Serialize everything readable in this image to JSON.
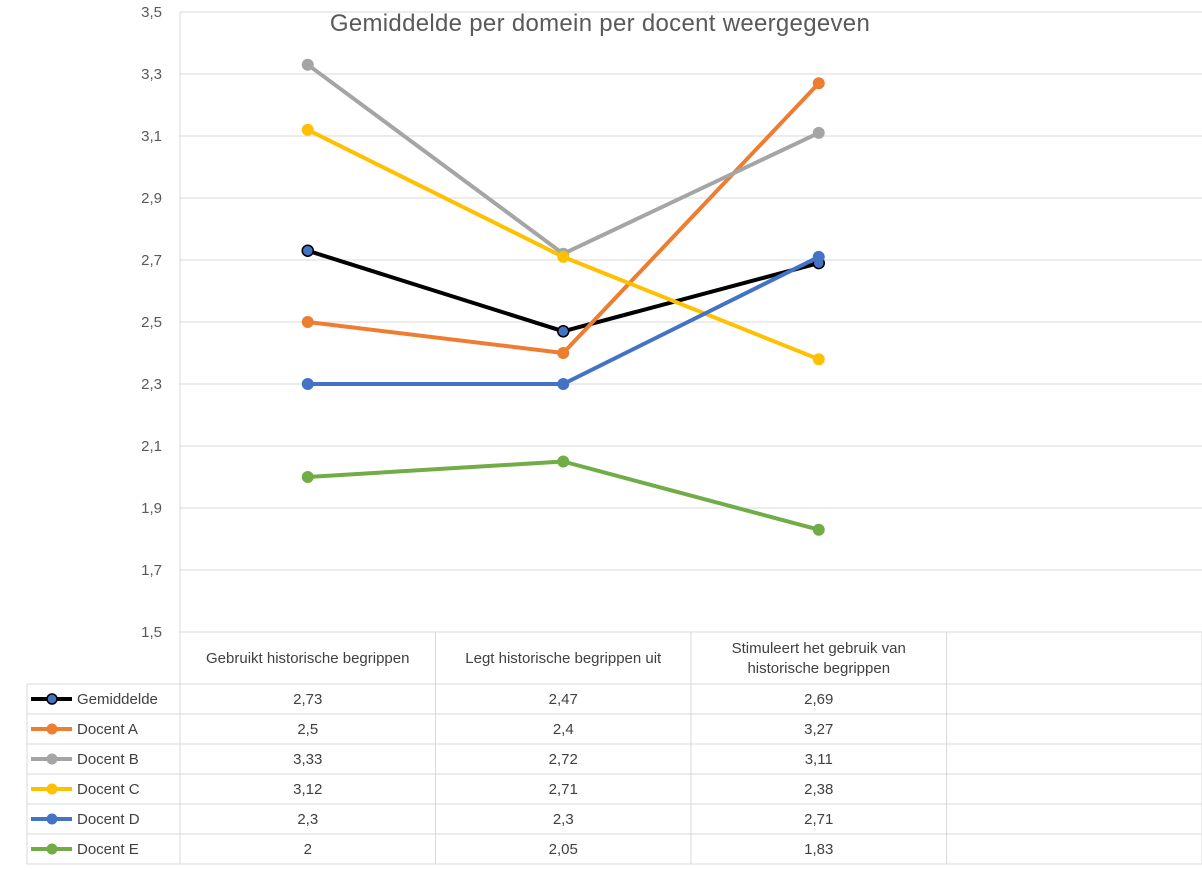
{
  "chart_data": {
    "type": "line",
    "title": "Gemiddelde per domein per docent weergegeven",
    "categories": [
      "Gebruikt historische begrippen",
      "Legt historische begrippen uit",
      "Stimuleert het gebruik van historische begrippen"
    ],
    "category_lines": [
      [
        "Gebruikt historische begrippen"
      ],
      [
        "Legt historische begrippen uit"
      ],
      [
        "Stimuleert het gebruik van",
        "historische begrippen"
      ]
    ],
    "ylim": [
      1.5,
      3.5
    ],
    "yticks": [
      1.5,
      1.7,
      1.9,
      2.1,
      2.3,
      2.5,
      2.7,
      2.9,
      3.1,
      3.3,
      3.5
    ],
    "ytick_labels": [
      "1,5",
      "1,7",
      "1,9",
      "2,1",
      "2,3",
      "2,5",
      "2,7",
      "2,9",
      "3,1",
      "3,3",
      "3,5"
    ],
    "grid": true,
    "data_table": true,
    "series": [
      {
        "name": "Gemiddelde",
        "values": [
          2.73,
          2.47,
          2.69
        ],
        "labels": [
          "2,73",
          "2,47",
          "2,69"
        ],
        "color": "#000000",
        "marker_fill": "#4472C4"
      },
      {
        "name": "Docent A",
        "values": [
          2.5,
          2.4,
          3.27
        ],
        "labels": [
          "2,5",
          "2,4",
          "3,27"
        ],
        "color": "#ED7D31",
        "marker_fill": "#ED7D31"
      },
      {
        "name": "Docent B",
        "values": [
          3.33,
          2.72,
          3.11
        ],
        "labels": [
          "3,33",
          "2,72",
          "3,11"
        ],
        "color": "#A5A5A5",
        "marker_fill": "#A5A5A5"
      },
      {
        "name": "Docent C",
        "values": [
          3.12,
          2.71,
          2.38
        ],
        "labels": [
          "3,12",
          "2,71",
          "2,38"
        ],
        "color": "#FFC000",
        "marker_fill": "#FFC000"
      },
      {
        "name": "Docent D",
        "values": [
          2.3,
          2.3,
          2.71
        ],
        "labels": [
          "2,3",
          "2,3",
          "2,71"
        ],
        "color": "#4472C4",
        "marker_fill": "#4472C4"
      },
      {
        "name": "Docent E",
        "values": [
          2,
          2.05,
          1.83
        ],
        "labels": [
          "2",
          "2,05",
          "1,83"
        ],
        "color": "#70AD47",
        "marker_fill": "#70AD47"
      }
    ]
  }
}
